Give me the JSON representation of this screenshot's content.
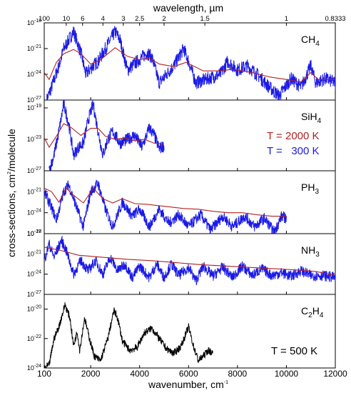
{
  "chart_data": {
    "type": "line",
    "x_axis": {
      "label": "wavenumber, cm",
      "label_sup": "-1",
      "range": [
        100,
        12000
      ],
      "ticks": [
        100,
        2000,
        4000,
        6000,
        8000,
        10000,
        12000
      ],
      "tick_labels": [
        "100",
        "2000",
        "4000",
        "6000",
        "8000",
        "10000",
        "12000"
      ]
    },
    "top_axis": {
      "label": "wavelength, µm",
      "ticks": [
        {
          "label": "100",
          "wavelength_um": 100
        },
        {
          "label": "10",
          "wavelength_um": 10
        },
        {
          "label": "6",
          "wavelength_um": 6
        },
        {
          "label": "4",
          "wavelength_um": 4
        },
        {
          "label": "3",
          "wavelength_um": 3
        },
        {
          "label": "2.5",
          "wavelength_um": 2.5
        },
        {
          "label": "2",
          "wavelength_um": 2
        },
        {
          "label": "1.5",
          "wavelength_um": 1.5
        },
        {
          "label": "1",
          "wavelength_um": 1
        },
        {
          "label": "0.8333",
          "wavelength_um": 0.8333
        }
      ]
    },
    "y_axis": {
      "label": "cross-sections, cm",
      "label_sup": "2",
      "label_tail": "/molecule",
      "scale": "log"
    },
    "panels": [
      {
        "molecule": "CH",
        "subscript": "4",
        "yrange_exp": [
          -27,
          -18
        ],
        "ticks": [
          {
            "base": "10",
            "exp": "-18",
            "e": -18
          },
          {
            "base": "10",
            "exp": "-21",
            "e": -21
          },
          {
            "base": "10",
            "exp": "-24",
            "e": -24
          },
          {
            "base": "10",
            "exp": "-27",
            "e": -27
          }
        ],
        "hot": [
          [
            100,
            -23.8
          ],
          [
            300,
            -24.6
          ],
          [
            600,
            -22.6
          ],
          [
            900,
            -21.6
          ],
          [
            1300,
            -21.1
          ],
          [
            1600,
            -21.6
          ],
          [
            2000,
            -22.8
          ],
          [
            2400,
            -22.3
          ],
          [
            3000,
            -20.9
          ],
          [
            3500,
            -21.9
          ],
          [
            4000,
            -22.3
          ],
          [
            4400,
            -22.1
          ],
          [
            4800,
            -22.8
          ],
          [
            5400,
            -23.1
          ],
          [
            5900,
            -22.6
          ],
          [
            6600,
            -23.6
          ],
          [
            7300,
            -23.6
          ],
          [
            7800,
            -23.4
          ],
          [
            8600,
            -23.8
          ],
          [
            9300,
            -24.3
          ],
          [
            10000,
            -24.6
          ],
          [
            10600,
            -24.9
          ],
          [
            11000,
            -23.8
          ],
          [
            11300,
            -24.6
          ],
          [
            12000,
            -24.6
          ]
        ],
        "cold": [
          [
            200,
            -27
          ],
          [
            400,
            -25.5
          ],
          [
            700,
            -23
          ],
          [
            900,
            -21
          ],
          [
            1300,
            -19
          ],
          [
            1600,
            -21.5
          ],
          [
            1800,
            -24
          ],
          [
            2100,
            -23
          ],
          [
            2300,
            -22.5
          ],
          [
            2600,
            -21
          ],
          [
            3000,
            -19
          ],
          [
            3200,
            -20
          ],
          [
            3500,
            -23.5
          ],
          [
            3900,
            -22.5
          ],
          [
            4300,
            -21.5
          ],
          [
            4500,
            -22
          ],
          [
            4800,
            -25
          ],
          [
            5100,
            -24
          ],
          [
            5400,
            -23
          ],
          [
            5800,
            -21
          ],
          [
            6000,
            -22.5
          ],
          [
            6300,
            -25
          ],
          [
            6800,
            -24.5
          ],
          [
            7300,
            -24
          ],
          [
            7600,
            -22.5
          ],
          [
            8000,
            -23.5
          ],
          [
            8400,
            -23
          ],
          [
            8800,
            -24
          ],
          [
            9300,
            -25.5
          ],
          [
            9700,
            -26.5
          ],
          [
            10200,
            -24.5
          ],
          [
            10600,
            -25.5
          ],
          [
            11000,
            -23
          ],
          [
            11200,
            -25
          ],
          [
            11600,
            -24.5
          ],
          [
            12000,
            -25
          ]
        ]
      },
      {
        "molecule": "SiH",
        "subscript": "4",
        "yrange_exp": [
          -27,
          -18
        ],
        "ticks": [
          {
            "base": "10",
            "exp": "-19",
            "e": -19
          },
          {
            "base": "10",
            "exp": "-23",
            "e": -23
          },
          {
            "base": "10",
            "exp": "-27",
            "e": -27
          }
        ],
        "hot": [
          [
            100,
            -22.8
          ],
          [
            300,
            -24
          ],
          [
            600,
            -22.6
          ],
          [
            900,
            -21
          ],
          [
            1200,
            -21.5
          ],
          [
            1600,
            -22.5
          ],
          [
            2000,
            -21.6
          ],
          [
            2300,
            -21.6
          ],
          [
            2600,
            -22.6
          ],
          [
            3000,
            -23
          ],
          [
            3400,
            -22.8
          ],
          [
            3800,
            -23.2
          ],
          [
            4200,
            -23
          ],
          [
            4600,
            -23.5
          ],
          [
            5000,
            -23.6
          ]
        ],
        "cold": [
          [
            300,
            -27
          ],
          [
            500,
            -25
          ],
          [
            700,
            -22
          ],
          [
            900,
            -18.5
          ],
          [
            1100,
            -21
          ],
          [
            1300,
            -25
          ],
          [
            1500,
            -24
          ],
          [
            1700,
            -23.5
          ],
          [
            1900,
            -20.5
          ],
          [
            2100,
            -18.5
          ],
          [
            2300,
            -22
          ],
          [
            2500,
            -25
          ],
          [
            2700,
            -23
          ],
          [
            2900,
            -22
          ],
          [
            3200,
            -23.5
          ],
          [
            3500,
            -23
          ],
          [
            3800,
            -22.5
          ],
          [
            4100,
            -24
          ],
          [
            4400,
            -21.5
          ],
          [
            4600,
            -22.5
          ],
          [
            4800,
            -24.2
          ],
          [
            5000,
            -23.8
          ]
        ]
      },
      {
        "molecule": "PH",
        "subscript": "3",
        "yrange_exp": [
          -27,
          -18
        ],
        "ticks": [
          {
            "base": "10",
            "exp": "-21",
            "e": -21
          },
          {
            "base": "10",
            "exp": "-24",
            "e": -24
          },
          {
            "base": "10",
            "exp": "-27",
            "e": -27
          }
        ],
        "hot": [
          [
            100,
            -20.5
          ],
          [
            400,
            -21
          ],
          [
            700,
            -22.5
          ],
          [
            1000,
            -20.5
          ],
          [
            1300,
            -21.5
          ],
          [
            1700,
            -22.6
          ],
          [
            2100,
            -20.5
          ],
          [
            2500,
            -22
          ],
          [
            2900,
            -22.6
          ],
          [
            3300,
            -22
          ],
          [
            3800,
            -22.7
          ],
          [
            4300,
            -22.8
          ],
          [
            4800,
            -23
          ],
          [
            5300,
            -23.2
          ],
          [
            5800,
            -23.4
          ],
          [
            6400,
            -23.5
          ],
          [
            7000,
            -23.8
          ],
          [
            7600,
            -24
          ],
          [
            8200,
            -24
          ],
          [
            8800,
            -24.3
          ],
          [
            9400,
            -24.5
          ],
          [
            10000,
            -24.5
          ]
        ],
        "cold": [
          [
            100,
            -21
          ],
          [
            300,
            -22.5
          ],
          [
            600,
            -25
          ],
          [
            900,
            -21
          ],
          [
            1100,
            -20
          ],
          [
            1400,
            -23
          ],
          [
            1700,
            -26
          ],
          [
            2000,
            -21
          ],
          [
            2300,
            -19.8
          ],
          [
            2600,
            -23.5
          ],
          [
            2900,
            -26
          ],
          [
            3300,
            -22.5
          ],
          [
            3700,
            -24.5
          ],
          [
            4000,
            -23.5
          ],
          [
            4400,
            -26
          ],
          [
            4800,
            -23.5
          ],
          [
            5200,
            -25.5
          ],
          [
            5600,
            -24.3
          ],
          [
            6000,
            -26
          ],
          [
            6500,
            -24.3
          ],
          [
            6900,
            -26.5
          ],
          [
            7400,
            -24.5
          ],
          [
            7800,
            -26
          ],
          [
            8300,
            -24.5
          ],
          [
            8700,
            -26
          ],
          [
            9100,
            -24.8
          ],
          [
            9500,
            -26.8
          ],
          [
            9800,
            -24.5
          ],
          [
            10000,
            -24.8
          ]
        ]
      },
      {
        "molecule": "NH",
        "subscript": "3",
        "yrange_exp": [
          -27,
          -18
        ],
        "ticks": [
          {
            "base": "10",
            "exp": "-18",
            "e": -18
          },
          {
            "base": "10",
            "exp": "-21",
            "e": -21
          },
          {
            "base": "10",
            "exp": "-24",
            "e": -24
          },
          {
            "base": "10",
            "exp": "-27",
            "e": -27
          }
        ],
        "hot": [
          [
            100,
            -20
          ],
          [
            800,
            -20.5
          ],
          [
            1500,
            -21.2
          ],
          [
            2500,
            -21.5
          ],
          [
            3500,
            -21.8
          ],
          [
            4500,
            -22
          ],
          [
            5500,
            -22.3
          ],
          [
            6500,
            -22.6
          ],
          [
            7500,
            -22.8
          ],
          [
            8500,
            -23
          ],
          [
            9500,
            -23.2
          ],
          [
            10500,
            -23.4
          ],
          [
            11200,
            -23.6
          ],
          [
            12000,
            -24.2
          ]
        ],
        "cold": [
          [
            100,
            -22
          ],
          [
            300,
            -19.5
          ],
          [
            500,
            -21.5
          ],
          [
            800,
            -19
          ],
          [
            1000,
            -20.5
          ],
          [
            1300,
            -24
          ],
          [
            1600,
            -22
          ],
          [
            1900,
            -23.5
          ],
          [
            2200,
            -22
          ],
          [
            2500,
            -24
          ],
          [
            2800,
            -21.5
          ],
          [
            3100,
            -23.5
          ],
          [
            3400,
            -22.5
          ],
          [
            3700,
            -24.5
          ],
          [
            4000,
            -22.8
          ],
          [
            4400,
            -24.5
          ],
          [
            4700,
            -22.5
          ],
          [
            5000,
            -24.5
          ],
          [
            5300,
            -22.5
          ],
          [
            5600,
            -24.2
          ],
          [
            6000,
            -23
          ],
          [
            6300,
            -25
          ],
          [
            6600,
            -22.8
          ],
          [
            7000,
            -24.3
          ],
          [
            7400,
            -23
          ],
          [
            7800,
            -24.5
          ],
          [
            8200,
            -22.8
          ],
          [
            8600,
            -24.2
          ],
          [
            9000,
            -23.2
          ],
          [
            9400,
            -24.2
          ],
          [
            9800,
            -23.8
          ],
          [
            10200,
            -24.3
          ],
          [
            10600,
            -23.5
          ],
          [
            11000,
            -24.2
          ],
          [
            11500,
            -24.2
          ],
          [
            12000,
            -24.5
          ]
        ]
      },
      {
        "molecule": "C",
        "subscript": "2",
        "molecule_tail": "H",
        "subscript_tail": "4",
        "yrange_exp": [
          -24,
          -19
        ],
        "ticks": [
          {
            "base": "10",
            "exp": "-20",
            "e": -20
          },
          {
            "base": "10",
            "exp": "-22",
            "e": -22
          },
          {
            "base": "10",
            "exp": "-24",
            "e": -24
          }
        ],
        "cold": [
          [
            100,
            -24
          ],
          [
            300,
            -23.8
          ],
          [
            500,
            -22
          ],
          [
            700,
            -21.2
          ],
          [
            950,
            -19.7
          ],
          [
            1150,
            -20.6
          ],
          [
            1300,
            -22.5
          ],
          [
            1450,
            -21.5
          ],
          [
            1550,
            -22.8
          ],
          [
            1750,
            -20.6
          ],
          [
            1950,
            -22
          ],
          [
            2150,
            -23.2
          ],
          [
            2400,
            -23.5
          ],
          [
            2700,
            -22
          ],
          [
            2950,
            -20.1
          ],
          [
            3100,
            -20.6
          ],
          [
            3300,
            -22.2
          ],
          [
            3600,
            -22.8
          ],
          [
            3900,
            -22.6
          ],
          [
            4200,
            -21.6
          ],
          [
            4500,
            -21.3
          ],
          [
            4800,
            -22
          ],
          [
            5100,
            -22.7
          ],
          [
            5400,
            -23
          ],
          [
            5700,
            -22.5
          ],
          [
            6000,
            -21.2
          ],
          [
            6200,
            -22.5
          ],
          [
            6400,
            -23.5
          ],
          [
            6600,
            -23.2
          ],
          [
            6800,
            -22.8
          ],
          [
            7000,
            -23
          ]
        ]
      }
    ],
    "legend": {
      "items": [
        {
          "label": "T = 2000 K",
          "color": "#b22222"
        },
        {
          "label": "T =   300 K",
          "color": "#1a1ae6"
        }
      ],
      "bottom_panel_label": "T = 500 K"
    },
    "colors": {
      "hot": "#b22222",
      "cold": "#1a1ae6",
      "black": "#000000"
    }
  }
}
